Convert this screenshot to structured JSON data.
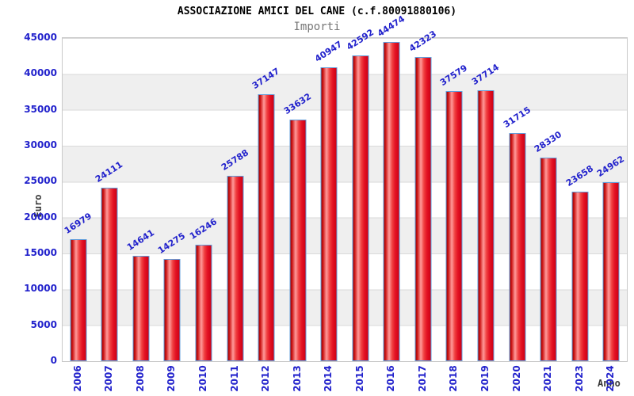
{
  "chart_data": {
    "type": "bar",
    "title": "ASSOCIAZIONE AMICI DEL CANE (c.f.80091880106)",
    "subtitle": "Importi",
    "xlabel": "Anno",
    "ylabel": "Euro",
    "categories": [
      "2006",
      "2007",
      "2008",
      "2009",
      "2010",
      "2011",
      "2012",
      "2013",
      "2014",
      "2015",
      "2016",
      "2017",
      "2018",
      "2019",
      "2020",
      "2021",
      "2023",
      "2024"
    ],
    "values": [
      16979,
      24111,
      14641,
      14275,
      16246,
      25788,
      37147,
      33632,
      40947,
      42592,
      44474,
      42323,
      37579,
      37714,
      31715,
      28330,
      23658,
      24962
    ],
    "ylim": [
      0,
      45000
    ],
    "ytick_step": 5000,
    "yticks": [
      45000,
      40000,
      35000,
      30000,
      25000,
      20000,
      15000,
      10000,
      5000,
      0
    ],
    "grid": "alternating-horizontal-bands",
    "legend_position": "none",
    "colors": {
      "label_blue": "#2222cc",
      "bar_red": "#e31224",
      "bar_border_blue": "#5f9ddb",
      "band_gray": "#efefef",
      "gridline": "#dadada",
      "plot_border": "#c9c9c9",
      "title": "#000000",
      "subtitle": "#767676",
      "axis_title": "#3a3a3a"
    }
  }
}
